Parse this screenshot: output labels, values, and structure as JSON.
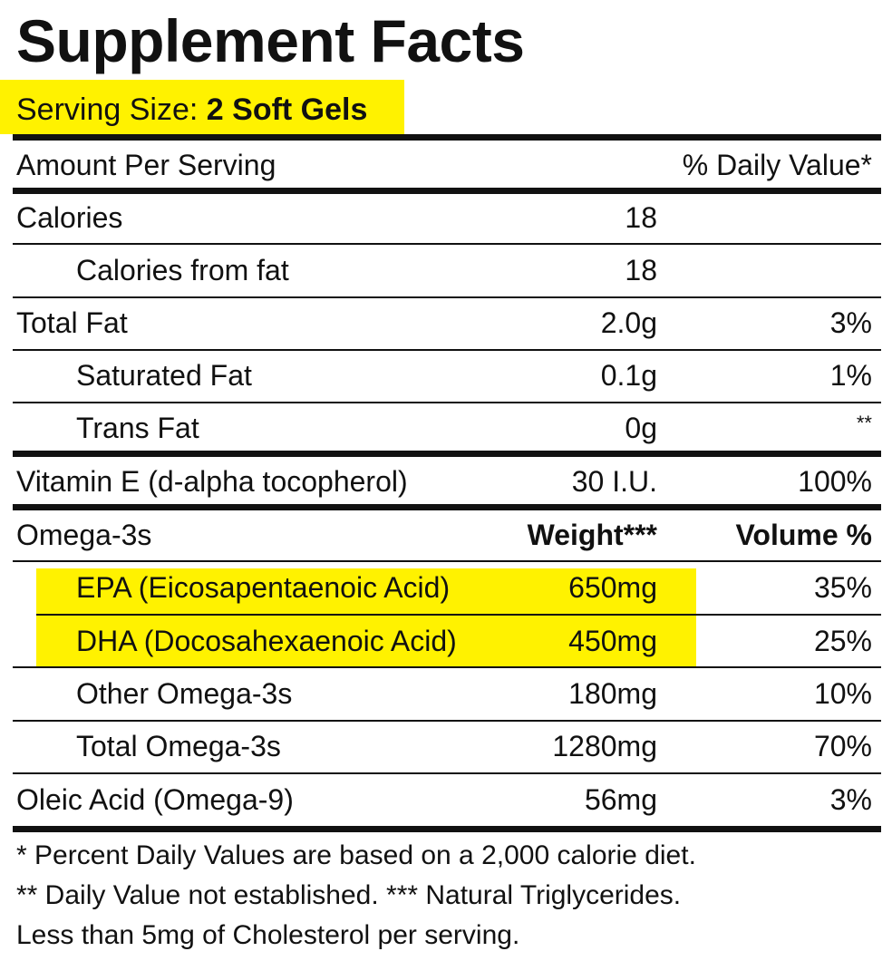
{
  "colors": {
    "highlight": "#FFF200",
    "text": "#111111",
    "rules": "#111111",
    "background": "#FFFFFF"
  },
  "title": "Supplement Facts",
  "serving": {
    "label": "Serving Size:",
    "value": "2 Soft Gels"
  },
  "header": {
    "amount_label": "Amount Per Serving",
    "dv_label": "% Daily Value*"
  },
  "rows": [
    {
      "label": "Calories",
      "amount": "18",
      "dv": ""
    },
    {
      "label": "Calories from fat",
      "amount": "18",
      "dv": ""
    },
    {
      "label": "Total Fat",
      "amount": "2.0g",
      "dv": "3%"
    },
    {
      "label": "Saturated Fat",
      "amount": "0.1g",
      "dv": "1%"
    },
    {
      "label": "Trans Fat",
      "amount": "0g",
      "dv": "**"
    },
    {
      "label": "Vitamin E (d-alpha tocopherol)",
      "amount": "30 I.U.",
      "dv": "100%"
    }
  ],
  "omega": {
    "label": "Omega-3s",
    "weight_header": "Weight***",
    "volume_header": "Volume %",
    "rows": [
      {
        "label": "EPA (Eicosapentaenoic Acid)",
        "amount": "650mg",
        "dv": "35%"
      },
      {
        "label": "DHA (Docosahexaenoic Acid)",
        "amount": "450mg",
        "dv": "25%"
      },
      {
        "label": "Other Omega-3s",
        "amount": "180mg",
        "dv": "10%"
      },
      {
        "label": "Total Omega-3s",
        "amount": "1280mg",
        "dv": "70%"
      }
    ]
  },
  "oleic": {
    "label": "Oleic Acid (Omega-9)",
    "amount": "56mg",
    "dv": "3%"
  },
  "footnotes": [
    "*  Percent Daily Values are based on a 2,000 calorie diet.",
    "** Daily Value not established. *** Natural Triglycerides.",
    "Less than 5mg of Cholesterol per serving."
  ]
}
